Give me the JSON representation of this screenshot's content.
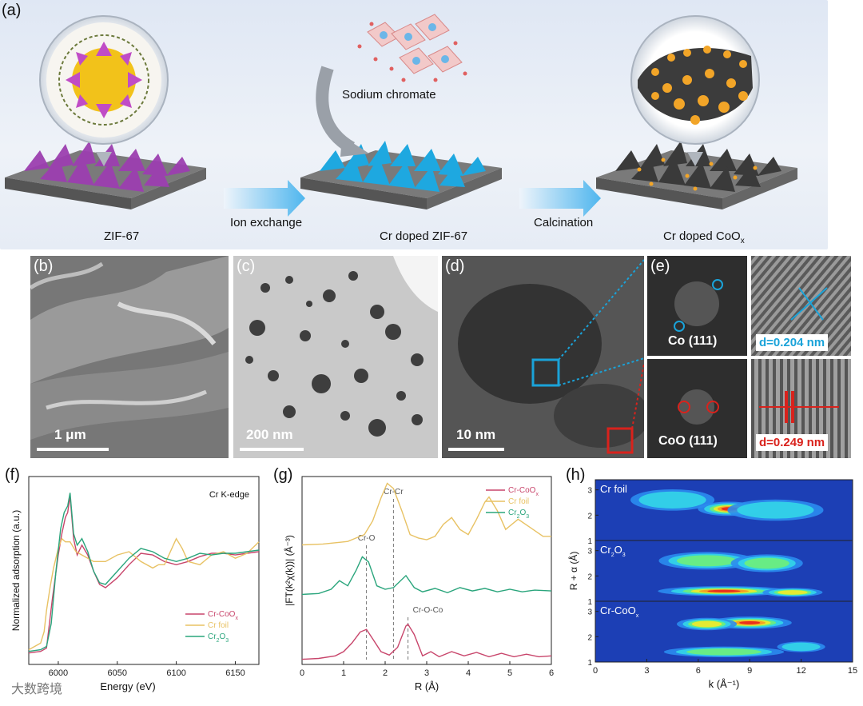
{
  "panel_a": {
    "label": "(a)",
    "stages": [
      "ZIF-67",
      "Cr doped ZIF-67",
      "Cr doped CoO",
      "x"
    ],
    "arrows": [
      "Ion exchange",
      "Calcination"
    ],
    "reagent": "Sodium chromate"
  },
  "micrographs": {
    "b": {
      "label": "(b)",
      "scale": "1 μm"
    },
    "c": {
      "label": "(c)",
      "scale": "200 nm"
    },
    "d": {
      "label": "(d)",
      "scale": "10 nm"
    },
    "e": {
      "label": "(e)",
      "fft1": "Co (111)",
      "d1": "d=0.204 nm",
      "fft2": "CoO (111)",
      "d2": "d=0.249 nm"
    }
  },
  "watermark": "大数跨境",
  "colors": {
    "cr_coox": "#c8456b",
    "cr_foil": "#e8c264",
    "cr2o3": "#2aa57c",
    "blue_box": "#1aa3d9",
    "red_box": "#d9221c"
  },
  "chart_data": [
    {
      "type": "line",
      "label": "(f)",
      "title": "Cr K-edge",
      "xlabel": "Energy (eV)",
      "ylabel": "Normalized adsorption (a.u.)",
      "xlim": [
        5975,
        6170
      ],
      "xticks": [
        6000,
        6050,
        6100,
        6150
      ],
      "legend_position": "lower-middle",
      "series": [
        {
          "name": "Cr-CoOx",
          "x": [
            5975,
            5985,
            5990,
            5995,
            6000,
            6003,
            6006,
            6008,
            6010,
            6013,
            6016,
            6020,
            6025,
            6030,
            6035,
            6040,
            6050,
            6060,
            6070,
            6080,
            6090,
            6100,
            6110,
            6120,
            6130,
            6140,
            6150,
            6160,
            6170
          ],
          "y": [
            0.02,
            0.03,
            0.05,
            0.35,
            0.62,
            0.75,
            0.85,
            0.88,
            0.98,
            0.72,
            0.62,
            0.68,
            0.62,
            0.52,
            0.44,
            0.42,
            0.48,
            0.56,
            0.63,
            0.62,
            0.58,
            0.56,
            0.58,
            0.61,
            0.63,
            0.63,
            0.62,
            0.63,
            0.64
          ]
        },
        {
          "name": "Cr foil",
          "x": [
            5975,
            5985,
            5988,
            5990,
            5993,
            5996,
            6000,
            6003,
            6006,
            6010,
            6015,
            6020,
            6030,
            6040,
            6050,
            6060,
            6070,
            6080,
            6085,
            6090,
            6100,
            6105,
            6110,
            6120,
            6130,
            6140,
            6150,
            6160,
            6170
          ],
          "y": [
            0.04,
            0.08,
            0.15,
            0.28,
            0.42,
            0.54,
            0.66,
            0.72,
            0.7,
            0.7,
            0.64,
            0.62,
            0.58,
            0.58,
            0.62,
            0.64,
            0.58,
            0.54,
            0.56,
            0.56,
            0.72,
            0.66,
            0.58,
            0.56,
            0.62,
            0.64,
            0.6,
            0.63,
            0.7
          ]
        },
        {
          "name": "Cr2O3",
          "x": [
            5975,
            5985,
            5990,
            5994,
            5998,
            6002,
            6005,
            6008,
            6010,
            6013,
            6016,
            6020,
            6025,
            6030,
            6035,
            6040,
            6050,
            6060,
            6070,
            6080,
            6090,
            6100,
            6110,
            6120,
            6130,
            6140,
            6150,
            6160,
            6170
          ],
          "y": [
            0.03,
            0.04,
            0.06,
            0.2,
            0.52,
            0.78,
            0.88,
            0.92,
            1.0,
            0.75,
            0.68,
            0.72,
            0.64,
            0.52,
            0.45,
            0.44,
            0.52,
            0.6,
            0.66,
            0.64,
            0.6,
            0.58,
            0.6,
            0.63,
            0.62,
            0.63,
            0.63,
            0.64,
            0.65
          ]
        }
      ]
    },
    {
      "type": "line",
      "label": "(g)",
      "xlabel": "R (Å)",
      "ylabel": "|FT(k²χ(k))| (Å⁻³)",
      "xlim": [
        0,
        6
      ],
      "xticks": [
        0,
        1,
        2,
        3,
        4,
        5,
        6
      ],
      "legend_position": "top-right",
      "annotations": [
        {
          "text": "Cr-O",
          "x": 1.55
        },
        {
          "text": "Cr-Cr",
          "x": 2.2
        },
        {
          "text": "Cr-O-Co",
          "x": 2.55
        }
      ],
      "series": [
        {
          "name": "Cr-CoOx",
          "offset": 0.0,
          "x": [
            0,
            0.4,
            0.8,
            1.0,
            1.2,
            1.4,
            1.55,
            1.7,
            1.9,
            2.1,
            2.3,
            2.5,
            2.55,
            2.7,
            2.9,
            3.1,
            3.3,
            3.6,
            3.9,
            4.2,
            4.5,
            4.8,
            5.1,
            5.4,
            5.7,
            6.0
          ],
          "y": [
            0.01,
            0.02,
            0.05,
            0.1,
            0.2,
            0.33,
            0.36,
            0.25,
            0.1,
            0.06,
            0.15,
            0.4,
            0.42,
            0.3,
            0.05,
            0.1,
            0.04,
            0.1,
            0.05,
            0.09,
            0.04,
            0.08,
            0.04,
            0.07,
            0.04,
            0.05
          ]
        },
        {
          "name": "Cr2O3",
          "offset": 0.75,
          "x": [
            0,
            0.4,
            0.7,
            0.9,
            1.1,
            1.3,
            1.45,
            1.6,
            1.8,
            2.0,
            2.2,
            2.5,
            2.7,
            2.9,
            3.2,
            3.5,
            3.8,
            4.1,
            4.4,
            4.7,
            5.0,
            5.3,
            5.6,
            6.0
          ],
          "y": [
            0.02,
            0.03,
            0.08,
            0.18,
            0.12,
            0.3,
            0.46,
            0.4,
            0.12,
            0.08,
            0.1,
            0.24,
            0.1,
            0.05,
            0.09,
            0.04,
            0.1,
            0.06,
            0.09,
            0.05,
            0.08,
            0.05,
            0.07,
            0.06
          ]
        },
        {
          "name": "Cr foil",
          "offset": 1.35,
          "x": [
            0,
            0.5,
            0.9,
            1.1,
            1.3,
            1.5,
            1.7,
            1.9,
            2.05,
            2.2,
            2.4,
            2.6,
            2.8,
            3.0,
            3.2,
            3.4,
            3.6,
            3.8,
            4.0,
            4.2,
            4.4,
            4.5,
            4.7,
            4.9,
            5.2,
            5.5,
            5.8,
            6.0
          ],
          "y": [
            0.0,
            0.01,
            0.03,
            0.04,
            0.08,
            0.12,
            0.28,
            0.55,
            0.72,
            0.66,
            0.4,
            0.12,
            0.08,
            0.06,
            0.1,
            0.24,
            0.32,
            0.18,
            0.12,
            0.3,
            0.5,
            0.56,
            0.4,
            0.18,
            0.3,
            0.2,
            0.1,
            0.1
          ]
        }
      ]
    },
    {
      "type": "heatmap",
      "label": "(h)",
      "xlabel": "k (Å⁻¹)",
      "ylabel": "R + α (Å)",
      "xlim": [
        0,
        15
      ],
      "xticks": [
        0,
        3,
        6,
        9,
        12,
        15
      ],
      "ylim": [
        1,
        3.4
      ],
      "yticks": [
        1,
        2,
        3
      ],
      "panels": [
        {
          "name": "Cr foil",
          "blobs": [
            {
              "k": 7.8,
              "r": 2.25,
              "w": 2.6,
              "h": 0.4,
              "i": 1.0
            },
            {
              "k": 4.5,
              "r": 2.6,
              "w": 3.5,
              "h": 0.6,
              "i": 0.35
            },
            {
              "k": 10.5,
              "r": 2.2,
              "w": 4,
              "h": 0.6,
              "i": 0.35
            }
          ]
        },
        {
          "name": "Cr2O3",
          "blobs": [
            {
              "k": 7.5,
              "r": 1.4,
              "w": 5.5,
              "h": 0.28,
              "i": 0.95
            },
            {
              "k": 11.5,
              "r": 1.35,
              "w": 2.5,
              "h": 0.25,
              "i": 0.6
            },
            {
              "k": 6.5,
              "r": 2.6,
              "w": 4,
              "h": 0.5,
              "i": 0.45
            },
            {
              "k": 10,
              "r": 2.5,
              "w": 3,
              "h": 0.5,
              "i": 0.4
            }
          ]
        },
        {
          "name": "Cr-CoOx",
          "blobs": [
            {
              "k": 9,
              "r": 2.55,
              "w": 3.5,
              "h": 0.35,
              "i": 1.0
            },
            {
              "k": 6.5,
              "r": 2.5,
              "w": 2.5,
              "h": 0.35,
              "i": 0.7
            },
            {
              "k": 7.5,
              "r": 1.4,
              "w": 5,
              "h": 0.3,
              "i": 0.5
            },
            {
              "k": 12,
              "r": 1.6,
              "w": 2,
              "h": 0.3,
              "i": 0.35
            }
          ]
        }
      ]
    }
  ]
}
